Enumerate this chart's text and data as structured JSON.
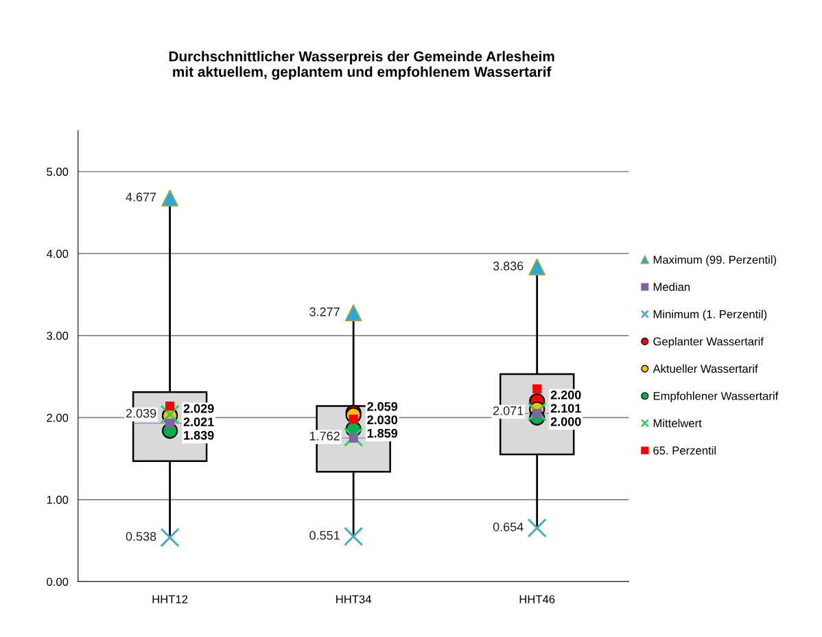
{
  "chart_data": {
    "type": "box",
    "title": "Durchschnittlicher Wasserpreis der Gemeinde Arlesheim\nmit aktuellem, geplantem und empfohlenem Wassertarif",
    "categories": [
      "HHT12",
      "HHT34",
      "HHT46"
    ],
    "boxes": [
      {
        "low": 0.538,
        "q1": 1.47,
        "median": 1.93,
        "q3": 2.31,
        "high": 4.677
      },
      {
        "low": 0.551,
        "q1": 1.34,
        "median": 1.75,
        "q3": 2.14,
        "high": 3.277
      },
      {
        "low": 0.654,
        "q1": 1.55,
        "median": 2.05,
        "q3": 2.53,
        "high": 3.836
      }
    ],
    "series": [
      {
        "name": "Maximum (99. Perzentil)",
        "type": "scatter",
        "marker": "triangle",
        "color": "#29a8e0",
        "values": [
          4.677,
          3.277,
          3.836
        ],
        "value_labels": [
          "4.677",
          "3.277",
          "3.836"
        ]
      },
      {
        "name": "Median",
        "type": "scatter",
        "marker": "square",
        "color": "#7f64a2",
        "values": [
          1.93,
          1.75,
          2.05
        ]
      },
      {
        "name": "Minimum (1. Perzentil)",
        "type": "scatter",
        "marker": "cross",
        "color": "#4bacc6",
        "values": [
          0.538,
          0.551,
          0.654
        ],
        "value_labels": [
          "0.538",
          "0.551",
          "0.654"
        ]
      },
      {
        "name": "Geplanter Wassertarif",
        "type": "scatter",
        "marker": "circle",
        "color": "#ff0000",
        "values": [
          2.029,
          2.059,
          2.2
        ],
        "value_labels": [
          "2.029",
          "2.059",
          "2.200"
        ]
      },
      {
        "name": "Aktueller Wassertarif",
        "type": "scatter",
        "marker": "circle",
        "color": "#ffc000",
        "values": [
          2.021,
          2.03,
          2.101
        ],
        "value_labels": [
          "2.021",
          "2.030",
          "2.101"
        ]
      },
      {
        "name": "Empfohlener Wassertarif",
        "type": "scatter",
        "marker": "circle",
        "color": "#00b050",
        "values": [
          1.839,
          1.859,
          2.0
        ],
        "value_labels": [
          "1.839",
          "1.859",
          "2.000"
        ]
      },
      {
        "name": "Mittelwert",
        "type": "scatter",
        "marker": "cross",
        "color": "#33cc66",
        "values": [
          2.039,
          1.762,
          2.071
        ],
        "value_labels": [
          "2.039",
          "1.762",
          "2.071"
        ]
      },
      {
        "name": "65. Perzentil",
        "type": "scatter",
        "marker": "square",
        "color": "#ff0000",
        "values": [
          2.14,
          1.98,
          2.35
        ]
      }
    ],
    "ylim": [
      0,
      5.5
    ],
    "yticks": [
      {
        "value": 0,
        "label": "0.00"
      },
      {
        "value": 1,
        "label": "1.00"
      },
      {
        "value": 2,
        "label": "2.00"
      },
      {
        "value": 3,
        "label": "3.00"
      },
      {
        "value": 4,
        "label": "4.00"
      },
      {
        "value": 5,
        "label": "5.00"
      }
    ],
    "grid": "y",
    "legend": "right"
  }
}
